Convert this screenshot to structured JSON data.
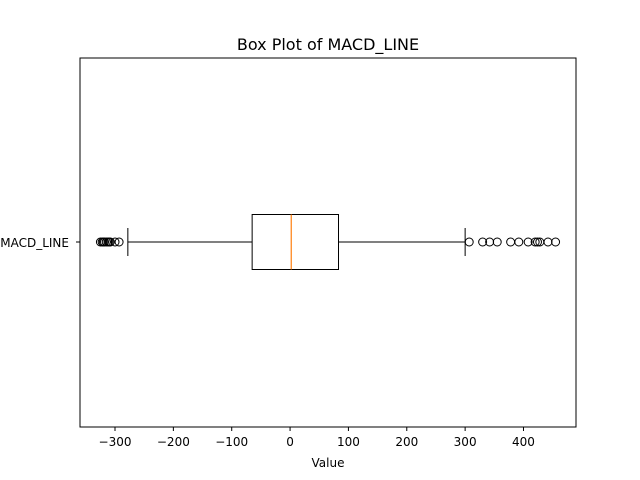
{
  "chart_data": {
    "type": "box",
    "orientation": "horizontal",
    "title": "Box Plot of MACD_LINE",
    "xlabel": "Value",
    "ylabel": "",
    "xlim": [
      -360,
      490
    ],
    "xticks": [
      -300,
      -200,
      -100,
      0,
      100,
      200,
      300,
      400
    ],
    "xtick_labels": [
      "−300",
      "−200",
      "−100",
      "0",
      "100",
      "200",
      "300",
      "400"
    ],
    "categories": [
      "MACD_LINE"
    ],
    "boxes": [
      {
        "name": "MACD_LINE",
        "whisker_low": -278,
        "q1": -65,
        "median": 2,
        "q3": 83,
        "whisker_high": 300,
        "outliers": [
          -325,
          -322,
          -320,
          -318,
          -315,
          -312,
          -310,
          -308,
          -300,
          -293,
          307,
          330,
          342,
          355,
          378,
          392,
          408,
          420,
          424,
          428,
          442,
          455
        ]
      }
    ],
    "colors": {
      "median": "#ff7f0e",
      "box": "#000000"
    },
    "grid": false,
    "legend": "none"
  }
}
